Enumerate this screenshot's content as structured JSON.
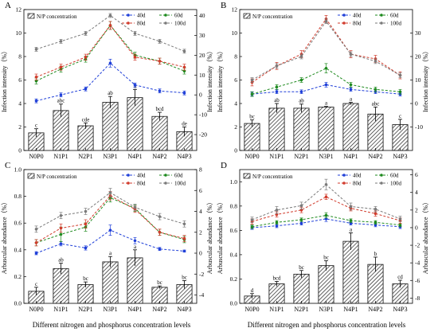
{
  "figure": {
    "x_axis_label": "Different nitrogen and phosphorus concentration levels",
    "bar_legend": "N/P concentration",
    "colors": {
      "40d": "#1f3fd8",
      "60d": "#1e8a1e",
      "80d": "#d13b2c",
      "100d": "#7a7a7a",
      "bar_hatch": "#222222"
    }
  },
  "chart_data": [
    {
      "panel": "A",
      "type": "bar",
      "categories": [
        "N0P0",
        "N1P1",
        "N2P1",
        "N3P1",
        "N4P1",
        "N4P2",
        "N4P3"
      ],
      "bar_values": [
        1.5,
        3.4,
        2.1,
        4.1,
        4.5,
        2.9,
        1.6
      ],
      "bar_errors": [
        0.35,
        0.55,
        0.25,
        0.5,
        0.7,
        0.35,
        0.4
      ],
      "bar_labels": [
        "c",
        "abc",
        "cde",
        "ab",
        "a",
        "bcd",
        "de"
      ],
      "left_ylabel": "Infection intensity（%）",
      "right_ylabel": "Infection intensity（%）",
      "left_ylim": [
        0,
        12
      ],
      "left_ticks": [
        0,
        2,
        4,
        6,
        8,
        10,
        12
      ],
      "right_ylim": [
        -28,
        43
      ],
      "right_ticks": [
        -20,
        -10,
        0,
        10,
        20,
        30,
        40
      ],
      "series": [
        {
          "name": "40d",
          "values": [
            -3,
            0,
            3,
            16,
            5,
            2,
            1
          ],
          "errors": [
            1,
            1,
            1,
            2,
            1,
            1,
            1
          ]
        },
        {
          "name": "60d",
          "values": [
            7,
            13,
            18,
            35,
            20,
            17,
            12
          ],
          "errors": [
            1.5,
            1.5,
            1.5,
            2,
            1.5,
            1.5,
            1.5
          ]
        },
        {
          "name": "80d",
          "values": [
            9,
            14,
            19,
            35,
            19,
            17,
            14
          ],
          "errors": [
            1.5,
            1.5,
            1.5,
            2,
            1.5,
            1.5,
            1.5
          ]
        },
        {
          "name": "100d",
          "values": [
            23,
            27,
            31,
            40,
            31,
            27,
            22
          ],
          "errors": [
            1,
            1,
            1,
            1,
            1,
            1,
            1
          ]
        }
      ]
    },
    {
      "panel": "B",
      "type": "bar",
      "categories": [
        "N0P0",
        "N1P1",
        "N2P1",
        "N3P1",
        "N4P1",
        "N4P2",
        "N4P3"
      ],
      "bar_values": [
        2.3,
        3.6,
        3.6,
        3.7,
        4.0,
        3.1,
        2.2
      ],
      "bar_errors": [
        0.3,
        0.4,
        0.35,
        0.05,
        0.1,
        0.6,
        0.45
      ],
      "bar_labels": [
        "bc",
        "ab",
        "ab",
        "a",
        "a",
        "abc",
        "c"
      ],
      "left_ylabel": "Infection intensity（%）",
      "right_ylabel": "Infection intensity（%）",
      "left_ylim": [
        0,
        12
      ],
      "left_ticks": [
        0,
        2,
        4,
        6,
        8,
        10,
        12
      ],
      "right_ylim": [
        -20,
        40
      ],
      "right_ticks": [
        -10,
        0,
        10,
        20,
        30
      ],
      "series": [
        {
          "name": "40d",
          "values": [
            4,
            5,
            5,
            8,
            6,
            5,
            4
          ],
          "errors": [
            0.8,
            0.8,
            0.8,
            1,
            0.8,
            0.8,
            0.8
          ]
        },
        {
          "name": "60d",
          "values": [
            4,
            7,
            10,
            15,
            8,
            6,
            5
          ],
          "errors": [
            1,
            1,
            1,
            2,
            1,
            1,
            1
          ]
        },
        {
          "name": "80d",
          "values": [
            9,
            16,
            21,
            36,
            21,
            19,
            12
          ],
          "errors": [
            1.5,
            1.5,
            1.5,
            1.5,
            1.5,
            1.5,
            1.5
          ]
        },
        {
          "name": "100d",
          "values": [
            10,
            16,
            20,
            35,
            21,
            18,
            12
          ],
          "errors": [
            1,
            1,
            1,
            1,
            1,
            1,
            1
          ]
        }
      ]
    },
    {
      "panel": "C",
      "type": "bar",
      "categories": [
        "N0P0",
        "N1P1",
        "N2P1",
        "N3P1",
        "N4P1",
        "N4P2",
        "N4P3"
      ],
      "bar_values": [
        0.09,
        0.26,
        0.14,
        0.31,
        0.34,
        0.12,
        0.14
      ],
      "bar_errors": [
        0.03,
        0.04,
        0.02,
        0.04,
        0.06,
        0.01,
        0.03
      ],
      "bar_labels": [
        "c",
        "ab",
        "bc",
        "a",
        "a",
        "bc",
        "bc"
      ],
      "left_ylabel": "Arbuscular abundance（%）",
      "right_ylabel": "Arbuscular abundance（%）",
      "left_ylim": [
        0,
        1.0
      ],
      "left_ticks": [
        0.0,
        0.2,
        0.4,
        0.6,
        0.8,
        1.0
      ],
      "right_ylim": [
        -4.8,
        8
      ],
      "right_ticks": [
        -4,
        -2,
        0,
        2,
        4,
        6,
        8
      ],
      "series": [
        {
          "name": "40d",
          "values": [
            0,
            0.9,
            0.5,
            2.2,
            1.2,
            0.4,
            0.2
          ],
          "errors": [
            0.15,
            0.2,
            0.2,
            0.5,
            0.3,
            0.15,
            0.1
          ]
        },
        {
          "name": "60d",
          "values": [
            1,
            1.8,
            2.5,
            5.3,
            4.3,
            2.0,
            1.3
          ],
          "errors": [
            0.3,
            0.7,
            0.4,
            0.4,
            0.3,
            0.3,
            0.3
          ]
        },
        {
          "name": "80d",
          "values": [
            1,
            2.4,
            2.8,
            5.5,
            4.2,
            2.0,
            1.4
          ],
          "errors": [
            0.3,
            0.4,
            0.4,
            0.4,
            0.3,
            0.3,
            0.3
          ]
        },
        {
          "name": "100d",
          "values": [
            2.3,
            3.6,
            4.0,
            5.8,
            4.4,
            3.5,
            2.8
          ],
          "errors": [
            0.3,
            0.3,
            0.3,
            0.4,
            0.3,
            0.3,
            0.3
          ]
        }
      ]
    },
    {
      "panel": "D",
      "type": "bar",
      "categories": [
        "N0P0",
        "N1P1",
        "N2P1",
        "N3P1",
        "N4P1",
        "N4P2",
        "N4P3"
      ],
      "bar_values": [
        0.06,
        0.16,
        0.24,
        0.31,
        0.51,
        0.32,
        0.16
      ],
      "bar_errors": [
        0.02,
        0.02,
        0.03,
        0.04,
        0.07,
        0.06,
        0.03
      ],
      "bar_labels": [
        "d",
        "bcd",
        "bc",
        "bc",
        "a",
        "b",
        "cd"
      ],
      "left_ylabel": "Arbuscular abundance（%）",
      "right_ylabel": "Arbuscular abundance（%）",
      "left_ylim": [
        0,
        1.1
      ],
      "left_ticks": [
        0.0,
        0.2,
        0.4,
        0.6,
        0.8,
        1.0
      ],
      "right_ylim": [
        -8.6,
        6.6
      ],
      "right_ticks": [
        -8,
        -6,
        -4,
        -2,
        0,
        2,
        4,
        6
      ],
      "series": [
        {
          "name": "40d",
          "values": [
            0,
            0.2,
            0.5,
            1.0,
            0.5,
            0.3,
            0.1
          ],
          "errors": [
            0.2,
            0.2,
            0.2,
            0.3,
            0.2,
            0.2,
            0.2
          ]
        },
        {
          "name": "60d",
          "values": [
            0.1,
            0.6,
            0.9,
            1.4,
            0.8,
            0.6,
            0.3
          ],
          "errors": [
            0.2,
            0.2,
            0.2,
            0.3,
            0.2,
            0.2,
            0.2
          ]
        },
        {
          "name": "80d",
          "values": [
            0.7,
            1.5,
            2.0,
            3.5,
            2.2,
            1.6,
            0.8
          ],
          "errors": [
            0.3,
            0.3,
            0.3,
            0.3,
            0.3,
            0.3,
            0.3
          ]
        },
        {
          "name": "100d",
          "values": [
            0.9,
            2.0,
            2.5,
            4.9,
            2.4,
            2.1,
            1.0
          ],
          "errors": [
            0.3,
            0.4,
            0.4,
            0.6,
            0.4,
            0.3,
            0.3
          ]
        }
      ]
    }
  ]
}
